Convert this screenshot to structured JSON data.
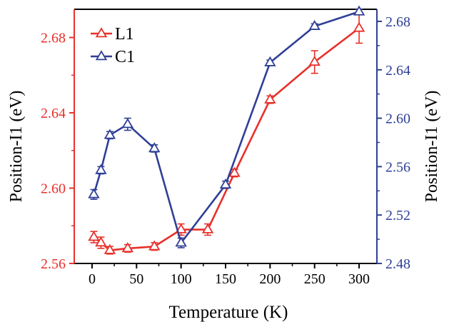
{
  "chart_data": {
    "type": "line",
    "xlabel": "Temperature (K)",
    "ylabel_left": "Position-I1 (eV)",
    "ylabel_right": "Position-I1 (eV)",
    "xlim": [
      -20,
      320
    ],
    "ylim_left": [
      2.56,
      2.695
    ],
    "ylim_right": [
      2.48,
      2.69
    ],
    "xticks": [
      0,
      50,
      100,
      150,
      200,
      250,
      300
    ],
    "yticks_left": [
      2.56,
      2.6,
      2.64,
      2.68
    ],
    "yticks_right": [
      2.48,
      2.52,
      2.56,
      2.6,
      2.64,
      2.68
    ],
    "ytick_labels_left": [
      "2.56",
      "2.60",
      "2.64",
      "2.68"
    ],
    "ytick_labels_right": [
      "2.48",
      "2.52",
      "2.56",
      "2.60",
      "2.64",
      "2.68"
    ],
    "xtick_labels": [
      "0",
      "50",
      "100",
      "150",
      "200",
      "250",
      "300"
    ],
    "legend_position": "top-left",
    "series": [
      {
        "name": "L1",
        "axis": "left",
        "color": "#e8302a",
        "marker": "open-triangle",
        "x": [
          2,
          10,
          20,
          40,
          70,
          100,
          130,
          160,
          200,
          250,
          300
        ],
        "y": [
          2.574,
          2.571,
          2.567,
          2.568,
          2.569,
          2.578,
          2.578,
          2.608,
          2.647,
          2.667,
          2.685
        ],
        "err": [
          0.003,
          0.003,
          0.002,
          0.002,
          0.002,
          0.003,
          0.003,
          0.002,
          0.002,
          0.006,
          0.008
        ]
      },
      {
        "name": "C1",
        "axis": "right",
        "color": "#2f3f96",
        "marker": "open-triangle",
        "x": [
          2,
          10,
          20,
          40,
          70,
          100,
          150,
          200,
          250,
          300
        ],
        "y": [
          2.537,
          2.557,
          2.586,
          2.595,
          2.575,
          2.497,
          2.545,
          2.646,
          2.676,
          2.688
        ],
        "err": [
          0.004,
          0.003,
          0.003,
          0.005,
          0.003,
          0.004,
          0.003,
          0.002,
          0.002,
          0.002
        ]
      }
    ]
  }
}
